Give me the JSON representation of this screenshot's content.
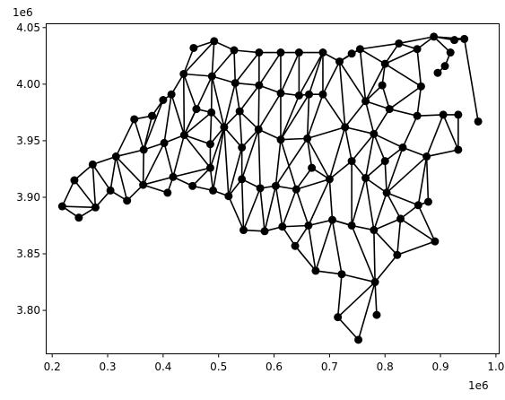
{
  "chart_data": {
    "type": "network",
    "x_offset_label": "1e6",
    "y_offset_label": "1e6",
    "xlim": [
      0.19,
      1.005
    ],
    "ylim": [
      3.762,
      4.053
    ],
    "x_ticks": [
      "0.2",
      "0.3",
      "0.4",
      "0.5",
      "0.6",
      "0.7",
      "0.8",
      "0.9",
      "1.0"
    ],
    "y_ticks": [
      "3.80",
      "3.85",
      "3.90",
      "3.95",
      "4.00",
      "4.05"
    ],
    "x_tick_values": [
      0.2,
      0.3,
      0.4,
      0.5,
      0.6,
      0.7,
      0.8,
      0.9,
      1.0
    ],
    "y_tick_values": [
      3.8,
      3.85,
      3.9,
      3.95,
      4.0,
      4.05
    ],
    "node_color": "#000000",
    "edge_color": "#000000",
    "nodes": [
      [
        0.218,
        3.892
      ],
      [
        0.248,
        3.882
      ],
      [
        0.278,
        3.891
      ],
      [
        0.24,
        3.915
      ],
      [
        0.273,
        3.929
      ],
      [
        0.305,
        3.906
      ],
      [
        0.335,
        3.897
      ],
      [
        0.315,
        3.936
      ],
      [
        0.364,
        3.911
      ],
      [
        0.408,
        3.904
      ],
      [
        0.365,
        3.942
      ],
      [
        0.348,
        3.969
      ],
      [
        0.38,
        3.972
      ],
      [
        0.4,
        3.986
      ],
      [
        0.402,
        3.948
      ],
      [
        0.418,
        3.918
      ],
      [
        0.415,
        3.991
      ],
      [
        0.438,
        3.955
      ],
      [
        0.437,
        4.009
      ],
      [
        0.453,
        3.91
      ],
      [
        0.455,
        4.032
      ],
      [
        0.492,
        4.038
      ],
      [
        0.46,
        3.978
      ],
      [
        0.488,
        4.007
      ],
      [
        0.487,
        3.975
      ],
      [
        0.485,
        3.926
      ],
      [
        0.485,
        3.947
      ],
      [
        0.49,
        3.906
      ],
      [
        0.51,
        3.962
      ],
      [
        0.518,
        3.901
      ],
      [
        0.528,
        4.03
      ],
      [
        0.53,
        4.001
      ],
      [
        0.538,
        3.976
      ],
      [
        0.542,
        3.944
      ],
      [
        0.542,
        3.916
      ],
      [
        0.545,
        3.871
      ],
      [
        0.573,
        4.028
      ],
      [
        0.573,
        3.999
      ],
      [
        0.572,
        3.96
      ],
      [
        0.575,
        3.908
      ],
      [
        0.583,
        3.87
      ],
      [
        0.603,
        3.91
      ],
      [
        0.612,
        4.028
      ],
      [
        0.612,
        3.992
      ],
      [
        0.612,
        3.951
      ],
      [
        0.615,
        3.874
      ],
      [
        0.645,
        4.028
      ],
      [
        0.645,
        3.99
      ],
      [
        0.663,
        3.991
      ],
      [
        0.688,
        4.028
      ],
      [
        0.688,
        3.991
      ],
      [
        0.66,
        3.952
      ],
      [
        0.64,
        3.907
      ],
      [
        0.662,
        3.875
      ],
      [
        0.638,
        3.857
      ],
      [
        0.675,
        3.835
      ],
      [
        0.668,
        3.926
      ],
      [
        0.7,
        3.916
      ],
      [
        0.705,
        3.88
      ],
      [
        0.718,
        4.02
      ],
      [
        0.728,
        3.962
      ],
      [
        0.74,
        4.027
      ],
      [
        0.755,
        4.031
      ],
      [
        0.74,
        3.932
      ],
      [
        0.74,
        3.875
      ],
      [
        0.722,
        3.832
      ],
      [
        0.715,
        3.794
      ],
      [
        0.752,
        3.774
      ],
      [
        0.765,
        3.985
      ],
      [
        0.765,
        3.917
      ],
      [
        0.78,
        3.956
      ],
      [
        0.78,
        3.871
      ],
      [
        0.782,
        3.825
      ],
      [
        0.785,
        3.796
      ],
      [
        0.795,
        3.999
      ],
      [
        0.8,
        4.018
      ],
      [
        0.8,
        3.932
      ],
      [
        0.803,
        3.904
      ],
      [
        0.808,
        3.978
      ],
      [
        0.822,
        3.849
      ],
      [
        0.825,
        4.036
      ],
      [
        0.828,
        3.881
      ],
      [
        0.832,
        3.944
      ],
      [
        0.858,
        3.972
      ],
      [
        0.858,
        4.031
      ],
      [
        0.865,
        3.998
      ],
      [
        0.86,
        3.893
      ],
      [
        0.875,
        3.936
      ],
      [
        0.878,
        3.896
      ],
      [
        0.888,
        4.042
      ],
      [
        0.895,
        4.01
      ],
      [
        0.908,
        4.016
      ],
      [
        0.918,
        4.028
      ],
      [
        0.925,
        4.039
      ],
      [
        0.943,
        4.04
      ],
      [
        0.905,
        3.973
      ],
      [
        0.932,
        3.973
      ],
      [
        0.932,
        3.942
      ],
      [
        0.968,
        3.967
      ],
      [
        0.89,
        3.861
      ]
    ],
    "edges": [
      [
        0,
        1
      ],
      [
        1,
        2
      ],
      [
        0,
        2
      ],
      [
        0,
        3
      ],
      [
        3,
        2
      ],
      [
        3,
        4
      ],
      [
        4,
        2
      ],
      [
        2,
        5
      ],
      [
        4,
        5
      ],
      [
        4,
        7
      ],
      [
        7,
        5
      ],
      [
        5,
        6
      ],
      [
        7,
        6
      ],
      [
        7,
        8
      ],
      [
        6,
        8
      ],
      [
        7,
        10
      ],
      [
        10,
        8
      ],
      [
        7,
        11
      ],
      [
        11,
        10
      ],
      [
        11,
        12
      ],
      [
        12,
        10
      ],
      [
        12,
        13
      ],
      [
        13,
        10
      ],
      [
        10,
        14
      ],
      [
        14,
        8
      ],
      [
        8,
        9
      ],
      [
        9,
        15
      ],
      [
        14,
        15
      ],
      [
        8,
        15
      ],
      [
        13,
        16
      ],
      [
        16,
        14
      ],
      [
        16,
        17
      ],
      [
        17,
        14
      ],
      [
        17,
        15
      ],
      [
        16,
        18
      ],
      [
        18,
        17
      ],
      [
        18,
        20
      ],
      [
        20,
        21
      ],
      [
        18,
        21
      ],
      [
        18,
        22
      ],
      [
        22,
        17
      ],
      [
        21,
        23
      ],
      [
        23,
        22
      ],
      [
        18,
        23
      ],
      [
        22,
        24
      ],
      [
        23,
        24
      ],
      [
        24,
        17
      ],
      [
        22,
        17
      ],
      [
        17,
        26
      ],
      [
        26,
        24
      ],
      [
        17,
        25
      ],
      [
        25,
        26
      ],
      [
        25,
        15
      ],
      [
        15,
        19
      ],
      [
        19,
        25
      ],
      [
        19,
        27
      ],
      [
        25,
        27
      ],
      [
        27,
        29
      ],
      [
        26,
        28
      ],
      [
        24,
        28
      ],
      [
        23,
        28
      ],
      [
        28,
        25
      ],
      [
        28,
        29
      ],
      [
        28,
        27
      ],
      [
        21,
        30
      ],
      [
        23,
        30
      ],
      [
        30,
        31
      ],
      [
        23,
        31
      ],
      [
        31,
        28
      ],
      [
        31,
        32
      ],
      [
        32,
        28
      ],
      [
        32,
        33
      ],
      [
        28,
        33
      ],
      [
        33,
        29
      ],
      [
        33,
        34
      ],
      [
        29,
        34
      ],
      [
        34,
        35
      ],
      [
        29,
        35
      ],
      [
        30,
        36
      ],
      [
        36,
        31
      ],
      [
        36,
        37
      ],
      [
        31,
        37
      ],
      [
        37,
        32
      ],
      [
        37,
        38
      ],
      [
        32,
        38
      ],
      [
        38,
        33
      ],
      [
        38,
        34
      ],
      [
        34,
        39
      ],
      [
        38,
        39
      ],
      [
        39,
        35
      ],
      [
        35,
        40
      ],
      [
        39,
        40
      ],
      [
        39,
        41
      ],
      [
        40,
        41
      ],
      [
        36,
        42
      ],
      [
        42,
        37
      ],
      [
        42,
        43
      ],
      [
        37,
        43
      ],
      [
        43,
        38
      ],
      [
        43,
        44
      ],
      [
        38,
        44
      ],
      [
        44,
        41
      ],
      [
        41,
        45
      ],
      [
        40,
        45
      ],
      [
        42,
        46
      ],
      [
        46,
        43
      ],
      [
        46,
        47
      ],
      [
        43,
        47
      ],
      [
        47,
        44
      ],
      [
        47,
        48
      ],
      [
        48,
        44
      ],
      [
        48,
        51
      ],
      [
        44,
        51
      ],
      [
        51,
        41
      ],
      [
        41,
        52
      ],
      [
        44,
        52
      ],
      [
        52,
        45
      ],
      [
        45,
        53
      ],
      [
        52,
        53
      ],
      [
        53,
        54
      ],
      [
        45,
        54
      ],
      [
        46,
        49
      ],
      [
        49,
        47
      ],
      [
        49,
        48
      ],
      [
        49,
        50
      ],
      [
        48,
        50
      ],
      [
        50,
        51
      ],
      [
        50,
        60
      ],
      [
        51,
        60
      ],
      [
        51,
        56
      ],
      [
        56,
        57
      ],
      [
        51,
        57
      ],
      [
        52,
        56
      ],
      [
        52,
        57
      ],
      [
        57,
        53
      ],
      [
        57,
        58
      ],
      [
        53,
        58
      ],
      [
        58,
        55
      ],
      [
        54,
        55
      ],
      [
        53,
        55
      ],
      [
        55,
        65
      ],
      [
        58,
        65
      ],
      [
        58,
        64
      ],
      [
        57,
        63
      ],
      [
        63,
        64
      ],
      [
        64,
        58
      ],
      [
        60,
        57
      ],
      [
        60,
        63
      ],
      [
        49,
        59
      ],
      [
        59,
        50
      ],
      [
        59,
        60
      ],
      [
        59,
        61
      ],
      [
        61,
        62
      ],
      [
        59,
        62
      ],
      [
        62,
        68
      ],
      [
        59,
        68
      ],
      [
        68,
        60
      ],
      [
        68,
        70
      ],
      [
        60,
        70
      ],
      [
        70,
        63
      ],
      [
        63,
        69
      ],
      [
        69,
        70
      ],
      [
        69,
        64
      ],
      [
        64,
        71
      ],
      [
        69,
        71
      ],
      [
        71,
        72
      ],
      [
        64,
        72
      ],
      [
        65,
        72
      ],
      [
        65,
        66
      ],
      [
        66,
        72
      ],
      [
        66,
        67
      ],
      [
        67,
        72
      ],
      [
        72,
        73
      ],
      [
        62,
        75
      ],
      [
        75,
        68
      ],
      [
        68,
        74
      ],
      [
        74,
        75
      ],
      [
        68,
        78
      ],
      [
        74,
        78
      ],
      [
        78,
        70
      ],
      [
        70,
        76
      ],
      [
        76,
        69
      ],
      [
        70,
        82
      ],
      [
        76,
        82
      ],
      [
        76,
        77
      ],
      [
        69,
        77
      ],
      [
        77,
        71
      ],
      [
        71,
        81
      ],
      [
        77,
        81
      ],
      [
        81,
        79
      ],
      [
        71,
        79
      ],
      [
        72,
        79
      ],
      [
        62,
        80
      ],
      [
        80,
        75
      ],
      [
        80,
        84
      ],
      [
        75,
        84
      ],
      [
        84,
        85
      ],
      [
        75,
        85
      ],
      [
        85,
        78
      ],
      [
        78,
        83
      ],
      [
        85,
        83
      ],
      [
        83,
        82
      ],
      [
        82,
        87
      ],
      [
        87,
        77
      ],
      [
        82,
        77
      ],
      [
        77,
        86
      ],
      [
        86,
        81
      ],
      [
        87,
        86
      ],
      [
        86,
        88
      ],
      [
        87,
        88
      ],
      [
        86,
        99
      ],
      [
        81,
        99
      ],
      [
        79,
        99
      ],
      [
        80,
        89
      ],
      [
        89,
        84
      ],
      [
        89,
        93
      ],
      [
        93,
        94
      ],
      [
        89,
        94
      ],
      [
        89,
        92
      ],
      [
        92,
        91
      ],
      [
        91,
        90
      ],
      [
        94,
        98
      ],
      [
        83,
        95
      ],
      [
        95,
        87
      ],
      [
        95,
        96
      ],
      [
        96,
        97
      ],
      [
        95,
        97
      ],
      [
        87,
        97
      ],
      [
        88,
        86
      ]
    ]
  }
}
